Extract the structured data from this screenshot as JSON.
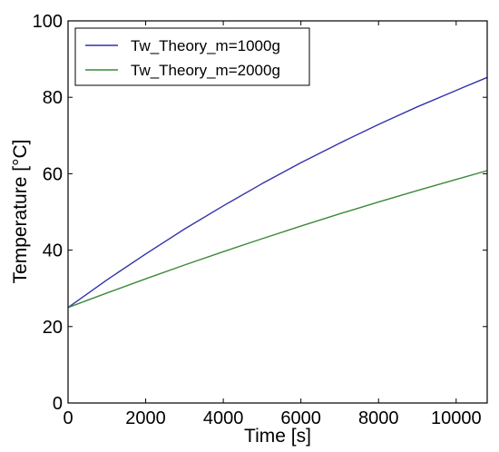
{
  "chart_data": {
    "type": "line",
    "title": "",
    "xlabel": "Time [s]",
    "ylabel": "Temperature [°C]",
    "xlim": [
      0,
      10800
    ],
    "ylim": [
      0,
      100
    ],
    "xticks": [
      0,
      2000,
      4000,
      6000,
      8000,
      10000
    ],
    "yticks": [
      0,
      20,
      40,
      60,
      80,
      100
    ],
    "grid": false,
    "legend_position": "upper-left",
    "series": [
      {
        "name": "Tw_Theory_m=1000g",
        "color": "#3333aa",
        "x": [
          0,
          1000,
          2000,
          3000,
          4000,
          5000,
          6000,
          7000,
          8000,
          9000,
          10000,
          10800
        ],
        "y": [
          25,
          32.2,
          39.0,
          45.5,
          51.6,
          57.4,
          62.9,
          68.0,
          72.9,
          77.5,
          81.8,
          85.2
        ]
      },
      {
        "name": "Tw_Theory_m=2000g",
        "color": "#3a8a3a",
        "x": [
          0,
          1000,
          2000,
          3000,
          4000,
          5000,
          6000,
          7000,
          8000,
          9000,
          10000,
          10800
        ],
        "y": [
          25,
          28.8,
          32.5,
          36.1,
          39.6,
          43.0,
          46.3,
          49.5,
          52.6,
          55.6,
          58.5,
          60.8
        ]
      }
    ]
  }
}
